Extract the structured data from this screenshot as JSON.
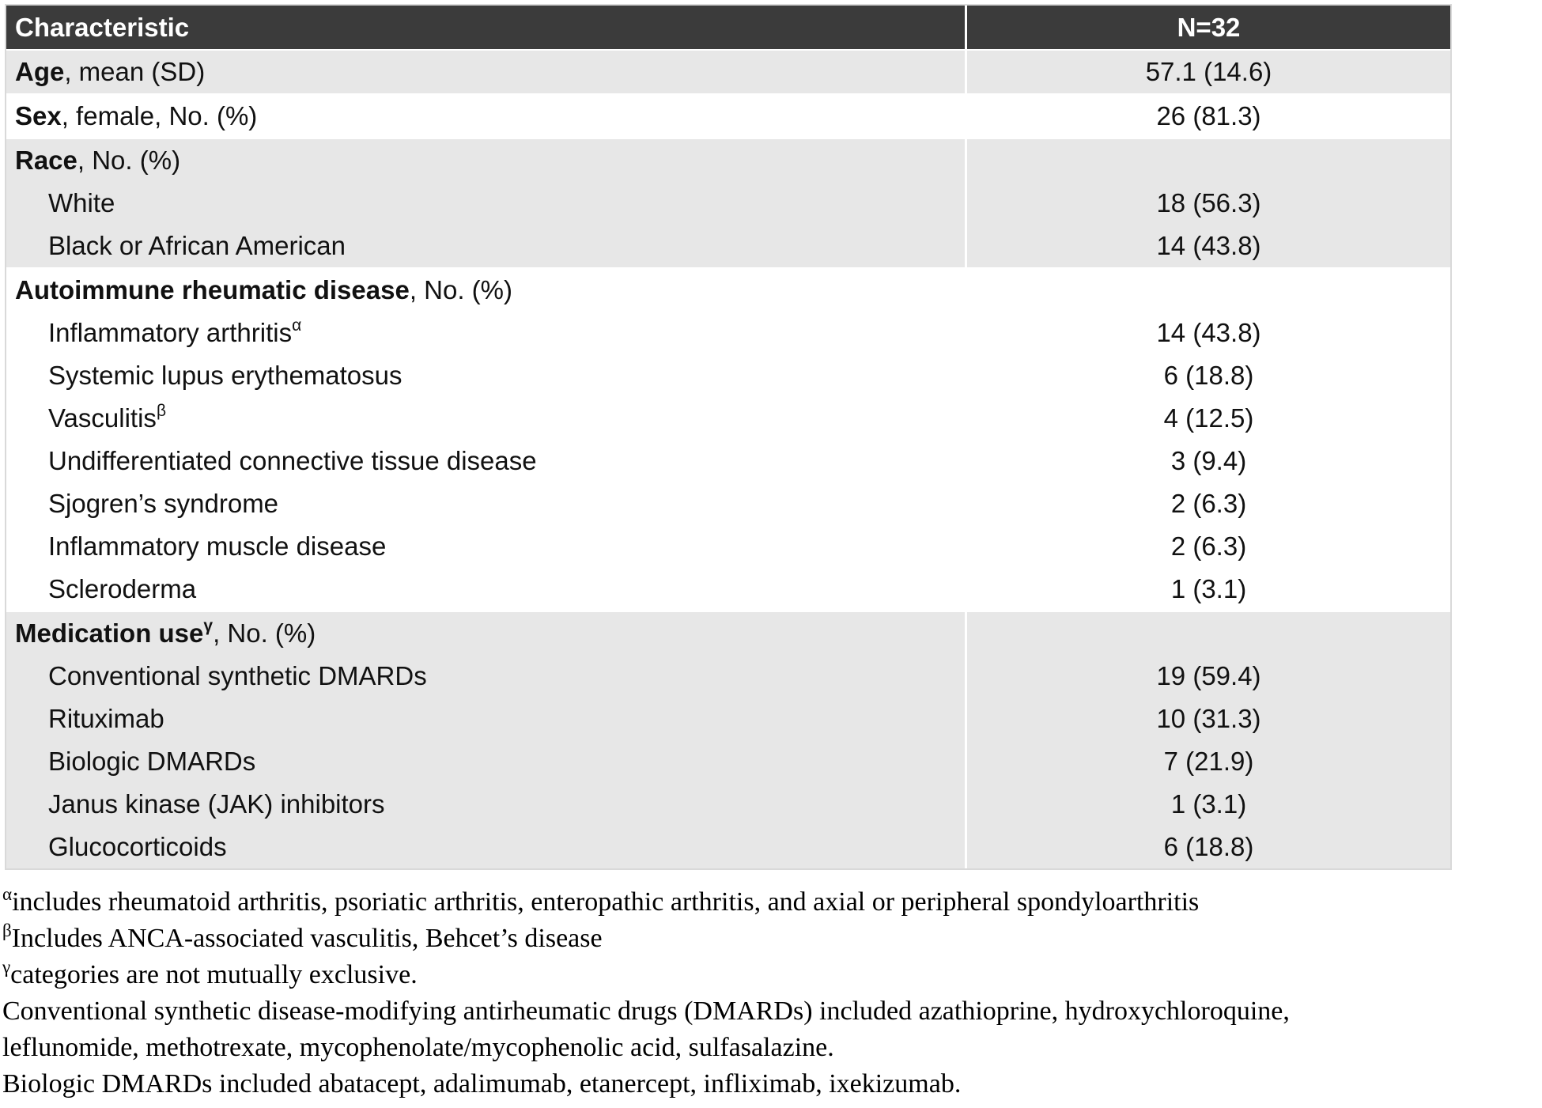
{
  "table": {
    "header": {
      "characteristic": "Characteristic",
      "n": "N=32"
    },
    "rows": {
      "age": {
        "bold": "Age",
        "rest": ", mean (SD)",
        "value": "57.1 (14.6)"
      },
      "sex": {
        "bold": "Sex",
        "rest": ", female, No. (%)",
        "value": "26 (81.3)"
      },
      "race": {
        "header_bold": "Race",
        "header_rest": ", No. (%)",
        "items": [
          {
            "label": "White",
            "value": "18 (56.3)"
          },
          {
            "label": "Black or African American",
            "value": "14 (43.8)"
          }
        ]
      },
      "autoimmune": {
        "header_bold": "Autoimmune rheumatic disease",
        "header_rest": ", No. (%)",
        "items": [
          {
            "label": "Inflammatory arthritis",
            "sup": "α",
            "value": "14 (43.8)"
          },
          {
            "label": "Systemic lupus erythematosus",
            "sup": "",
            "value": "6 (18.8)"
          },
          {
            "label": "Vasculitis",
            "sup": "β",
            "value": "4 (12.5)"
          },
          {
            "label": "Undifferentiated connective tissue disease",
            "sup": "",
            "value": "3 (9.4)"
          },
          {
            "label": "Sjogren’s syndrome",
            "sup": "",
            "value": "2 (6.3)"
          },
          {
            "label": "Inflammatory muscle disease",
            "sup": "",
            "value": "2 (6.3)"
          },
          {
            "label": "Scleroderma",
            "sup": "",
            "value": "1 (3.1)"
          }
        ]
      },
      "medication": {
        "header_bold": "Medication use",
        "header_sup": "γ",
        "header_rest": ", No. (%)",
        "items": [
          {
            "label": "Conventional synthetic DMARDs",
            "value": "19 (59.4)"
          },
          {
            "label": "Rituximab",
            "value": "10 (31.3)"
          },
          {
            "label": "Biologic DMARDs",
            "value": "7 (21.9)"
          },
          {
            "label": "Janus kinase (JAK) inhibitors",
            "value": "1 (3.1)"
          },
          {
            "label": "Glucocorticoids",
            "value": "6 (18.8)"
          }
        ]
      }
    }
  },
  "footnotes": [
    {
      "sup": "α",
      "text": "includes rheumatoid arthritis, psoriatic arthritis, enteropathic arthritis, and axial or peripheral spondyloarthritis"
    },
    {
      "sup": "β",
      "text": "Includes ANCA-associated vasculitis, Behcet’s disease"
    },
    {
      "sup": "γ",
      "text": "categories are not mutually exclusive."
    },
    {
      "sup": "",
      "text": "Conventional synthetic disease-modifying antirheumatic drugs (DMARDs) included azathioprine, hydroxychloroquine,"
    },
    {
      "sup": "",
      "text": "leflunomide, methotrexate, mycophenolate/mycophenolic acid, sulfasalazine."
    },
    {
      "sup": "",
      "text": "Biologic DMARDs included abatacept, adalimumab, etanercept, infliximab, ixekizumab."
    }
  ],
  "colors": {
    "header_bg": "#3b3b3b",
    "header_text": "#ffffff",
    "band_gray": "#e7e7e7",
    "band_white": "#ffffff",
    "text": "#111111",
    "outer_border": "#d9d9d9"
  }
}
